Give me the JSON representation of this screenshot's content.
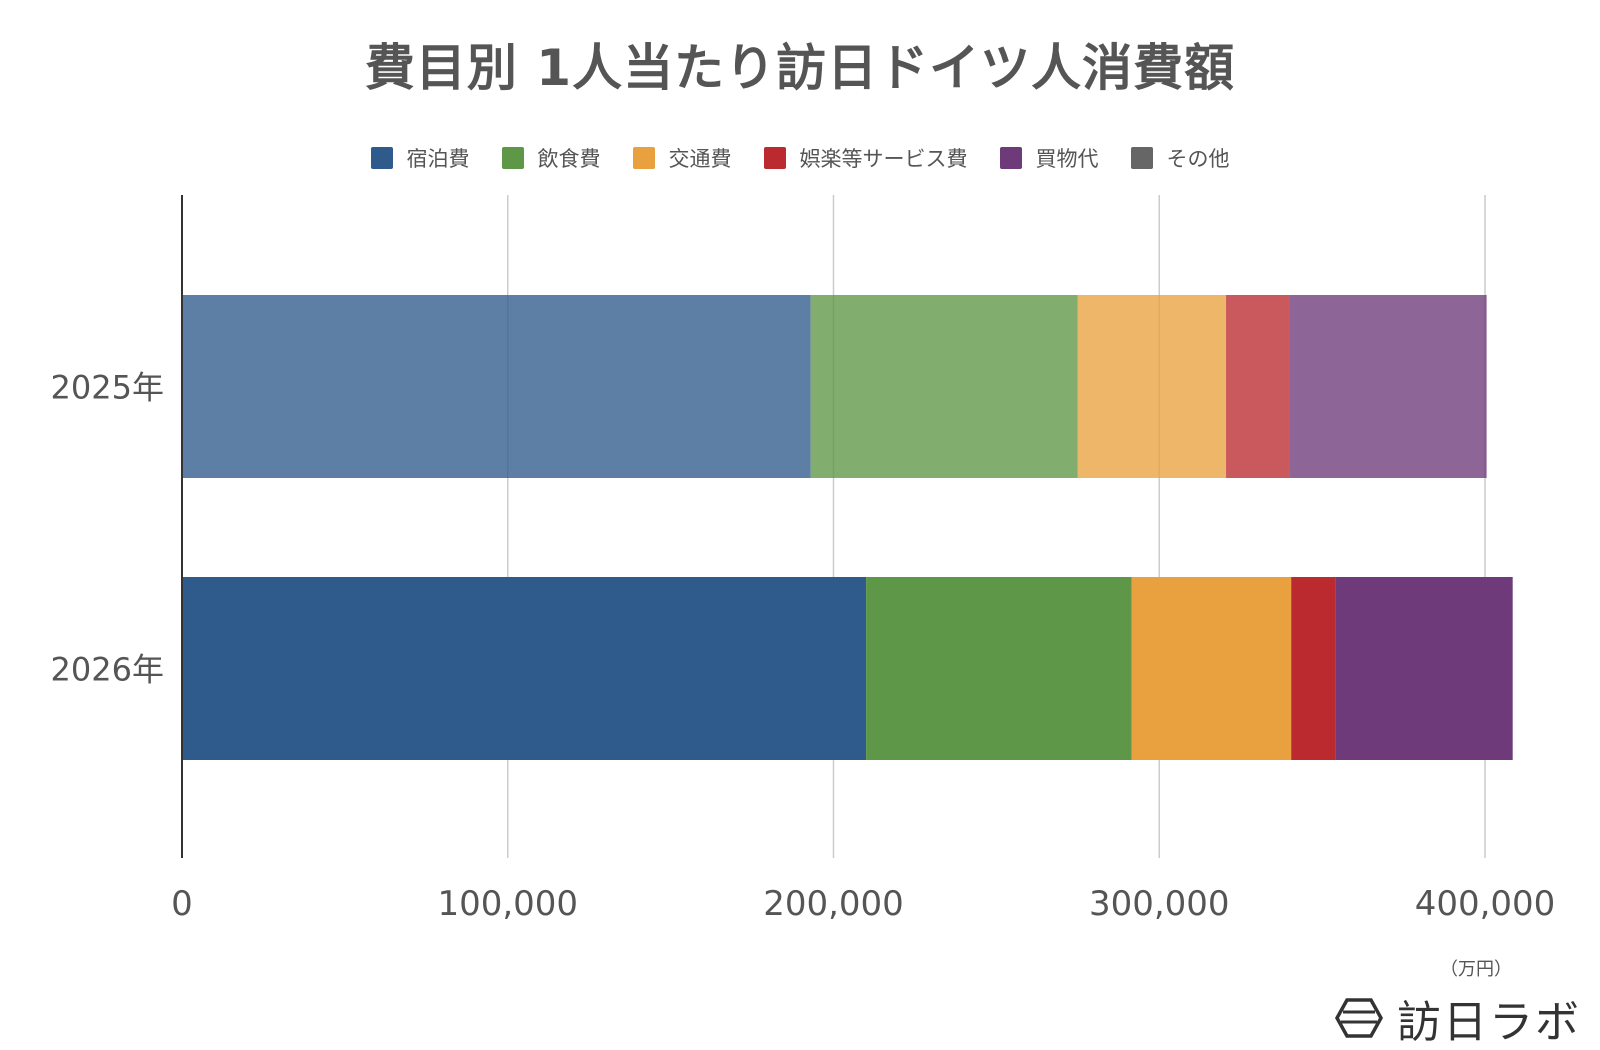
{
  "chart_data": {
    "type": "bar",
    "orientation": "horizontal",
    "stacked": true,
    "title": "費目別 1人当たり訪日ドイツ人消費額",
    "categories": [
      "2025年",
      "2026年"
    ],
    "series": [
      {
        "name": "宿泊費",
        "values": [
          193000,
          210000
        ],
        "color": "#2f5a8c"
      },
      {
        "name": "飲食費",
        "values": [
          82000,
          81500
        ],
        "color": "#5e9747"
      },
      {
        "name": "交通費",
        "values": [
          45500,
          49000
        ],
        "color": "#e8a13e"
      },
      {
        "name": "娯楽等サービス費",
        "values": [
          19500,
          13500
        ],
        "color": "#bb2a2f"
      },
      {
        "name": "買物代",
        "values": [
          60500,
          54500
        ],
        "color": "#6e3a7a"
      },
      {
        "name": "その他",
        "values": [
          0,
          0
        ],
        "color": "#666666"
      }
    ],
    "series_opacity": [
      0.78,
      1.0
    ],
    "xlim": [
      0,
      400000
    ],
    "xticks": [
      "0",
      "100,000",
      "200,000",
      "300,000",
      "400,000"
    ],
    "unit_label": "（万円）",
    "grid": true,
    "legend_position": "top"
  },
  "brand": {
    "logo_text": "訪日ラボ"
  }
}
